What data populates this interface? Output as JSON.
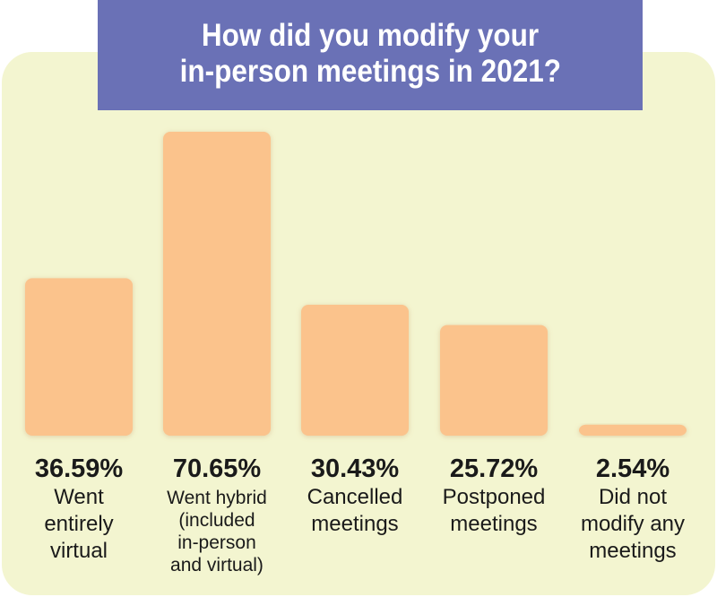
{
  "colors": {
    "panel": "#f3f5d0",
    "title_background": "#6a71b6",
    "bar": "#fbc38c",
    "title_text": "#ffffff",
    "label_text": "#1a1a1a"
  },
  "chart_data": {
    "type": "bar",
    "title_lines": [
      "How did you modify your",
      "in-person meetings in 2021?"
    ],
    "categories": [
      [
        "Went",
        "entirely",
        "virtual"
      ],
      [
        "Went hybrid",
        "(included",
        "in-person",
        "and virtual)"
      ],
      [
        "Cancelled",
        "meetings"
      ],
      [
        "Postponed",
        "meetings"
      ],
      [
        "Did not",
        "modify any",
        "meetings"
      ]
    ],
    "values": [
      36.59,
      70.65,
      30.43,
      25.72,
      2.54
    ],
    "value_labels": [
      "36.59%",
      "70.65%",
      "30.43%",
      "25.72%",
      "2.54%"
    ],
    "ylim": [
      0,
      70.65
    ],
    "grid": false,
    "legend": "none"
  }
}
